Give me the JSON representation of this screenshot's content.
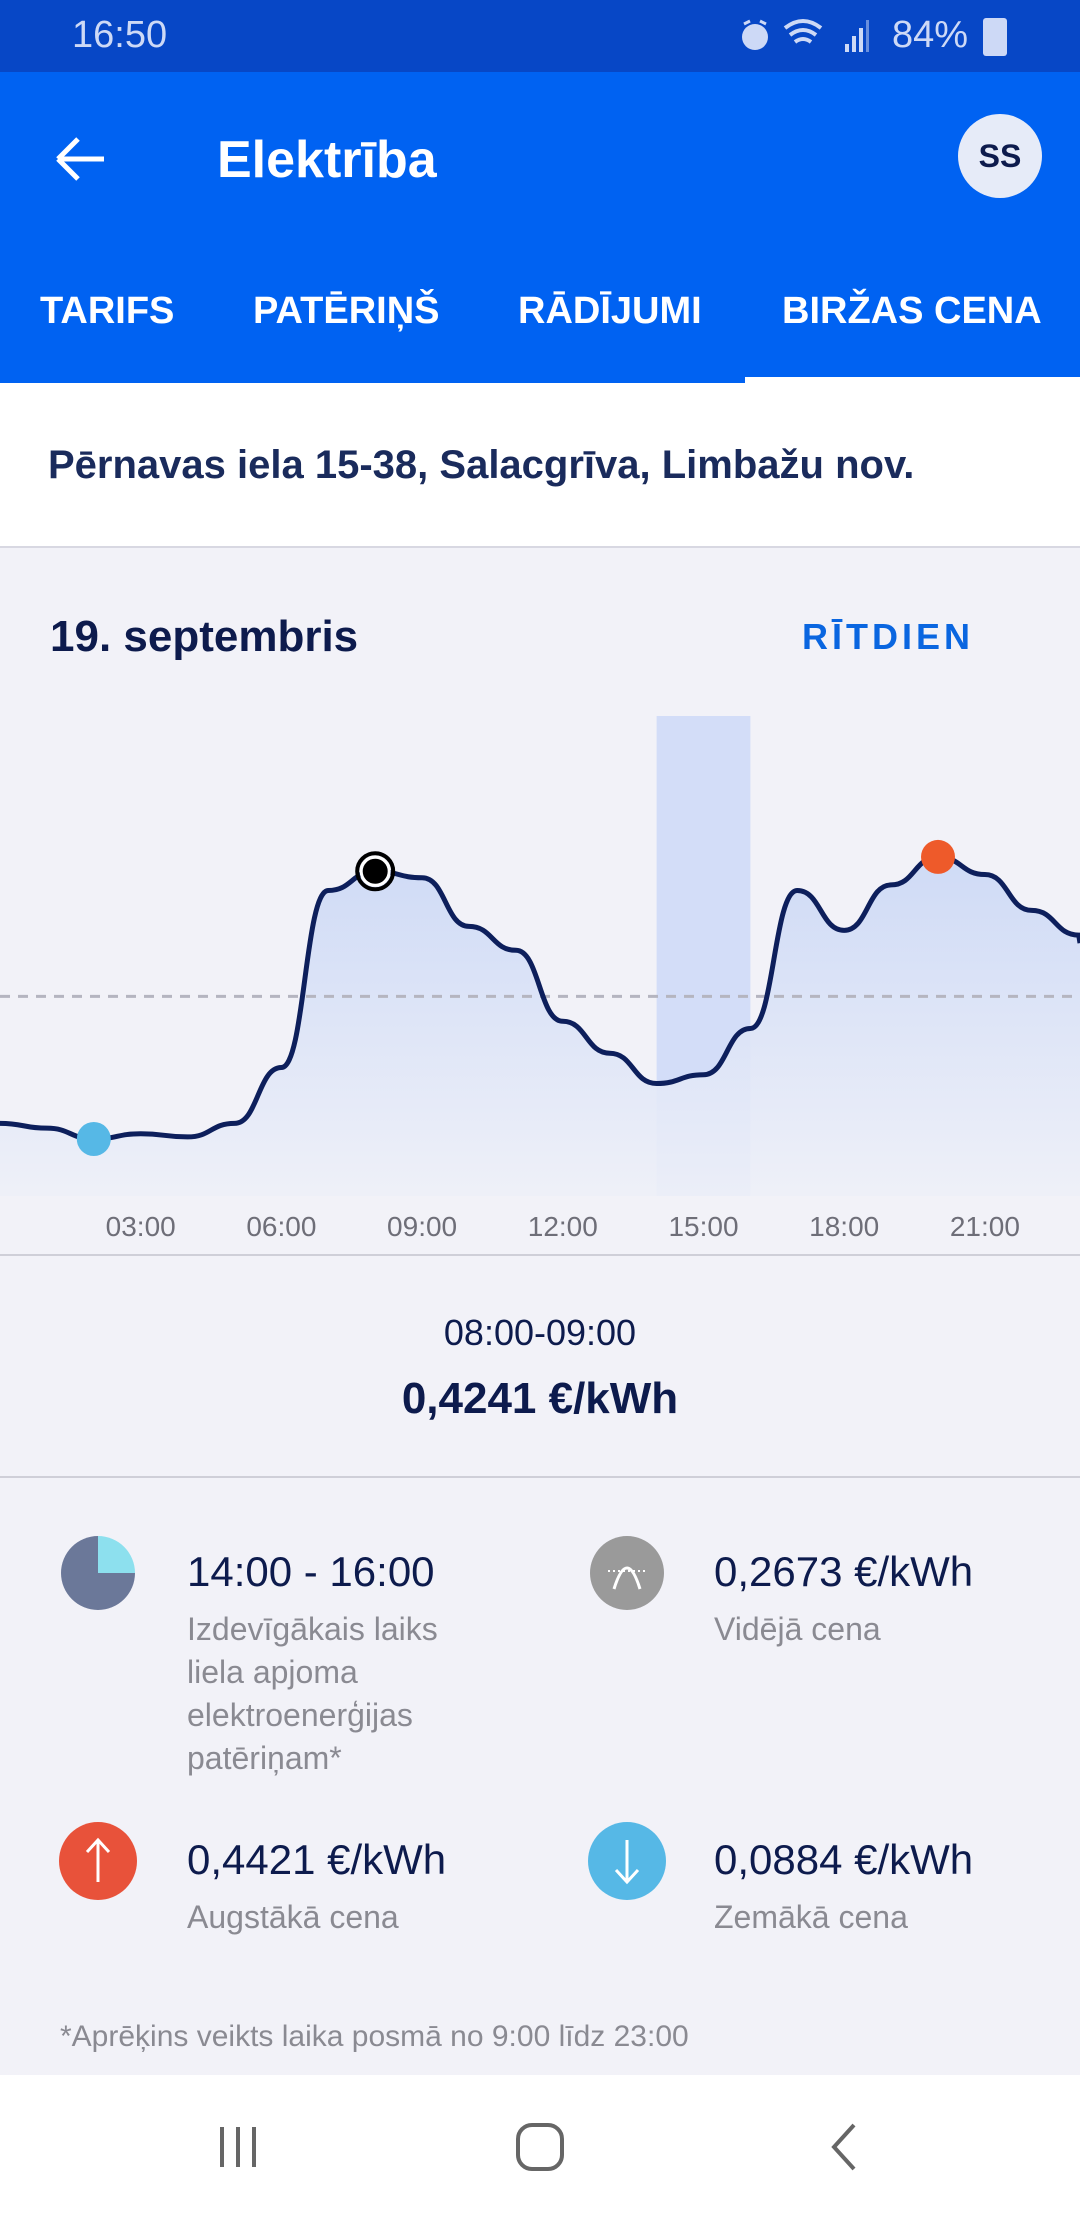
{
  "status_bar": {
    "time": "16:50",
    "battery": "84%",
    "icons": [
      "alarm-icon",
      "wifi-icon",
      "signal-icon",
      "battery-icon"
    ]
  },
  "app_bar": {
    "title": "Elektrība",
    "avatar": "SS"
  },
  "tabs": [
    {
      "label": "TARIFS"
    },
    {
      "label": "PATĒRIŅŠ"
    },
    {
      "label": "RĀDĪJUMI"
    },
    {
      "label": "BIRŽAS CENA",
      "active": true
    }
  ],
  "address": "Pērnavas iela 15-38, Salacgrīva, Limbažu nov.",
  "date": "19. septembris",
  "tomorrow_label": "RĪTDIEN",
  "colors": {
    "primary": "#0062f2",
    "line": "#0d1f5c",
    "min": "#56b8e6",
    "max": "#ee5a2a",
    "highlight": "#d3ddf8"
  },
  "chart_data": {
    "type": "line",
    "x": [
      0,
      1,
      2,
      3,
      4,
      5,
      6,
      7,
      8,
      9,
      10,
      11,
      12,
      13,
      14,
      15,
      16,
      17,
      18,
      19,
      20,
      21,
      22,
      23
    ],
    "values": [
      0.108,
      0.102,
      0.0884,
      0.095,
      0.091,
      0.108,
      0.178,
      0.4,
      0.4241,
      0.416,
      0.355,
      0.325,
      0.236,
      0.196,
      0.158,
      0.169,
      0.227,
      0.4,
      0.35,
      0.407,
      0.4421,
      0.42,
      0.375,
      0.344
    ],
    "x_ticks": [
      "03:00",
      "06:00",
      "09:00",
      "12:00",
      "15:00",
      "18:00",
      "21:00"
    ],
    "x_tick_hours": [
      3,
      6,
      9,
      12,
      15,
      18,
      21
    ],
    "average": 0.2673,
    "min_hour": 2,
    "max_hour": 20,
    "selected_hour": 8,
    "highlight_hours": [
      14,
      16
    ],
    "unit": "€/kWh"
  },
  "selection": {
    "time": "08:00-09:00",
    "price": "0,4241 €/kWh"
  },
  "stats": {
    "best": {
      "value": "14:00 - 16:00",
      "label": "Izdevīgākais laiks liela apjoma elektroenerģijas patēriņam*"
    },
    "avg": {
      "value": "0,2673 €/kWh",
      "label": "Vidējā cena"
    },
    "max": {
      "value": "0,4421 €/kWh",
      "label": "Augstākā cena"
    },
    "min": {
      "value": "0,0884 €/kWh",
      "label": "Zemākā cena"
    }
  },
  "footnote": "*Aprēķins veikts laika posmā no 9:00 līdz 23:00"
}
